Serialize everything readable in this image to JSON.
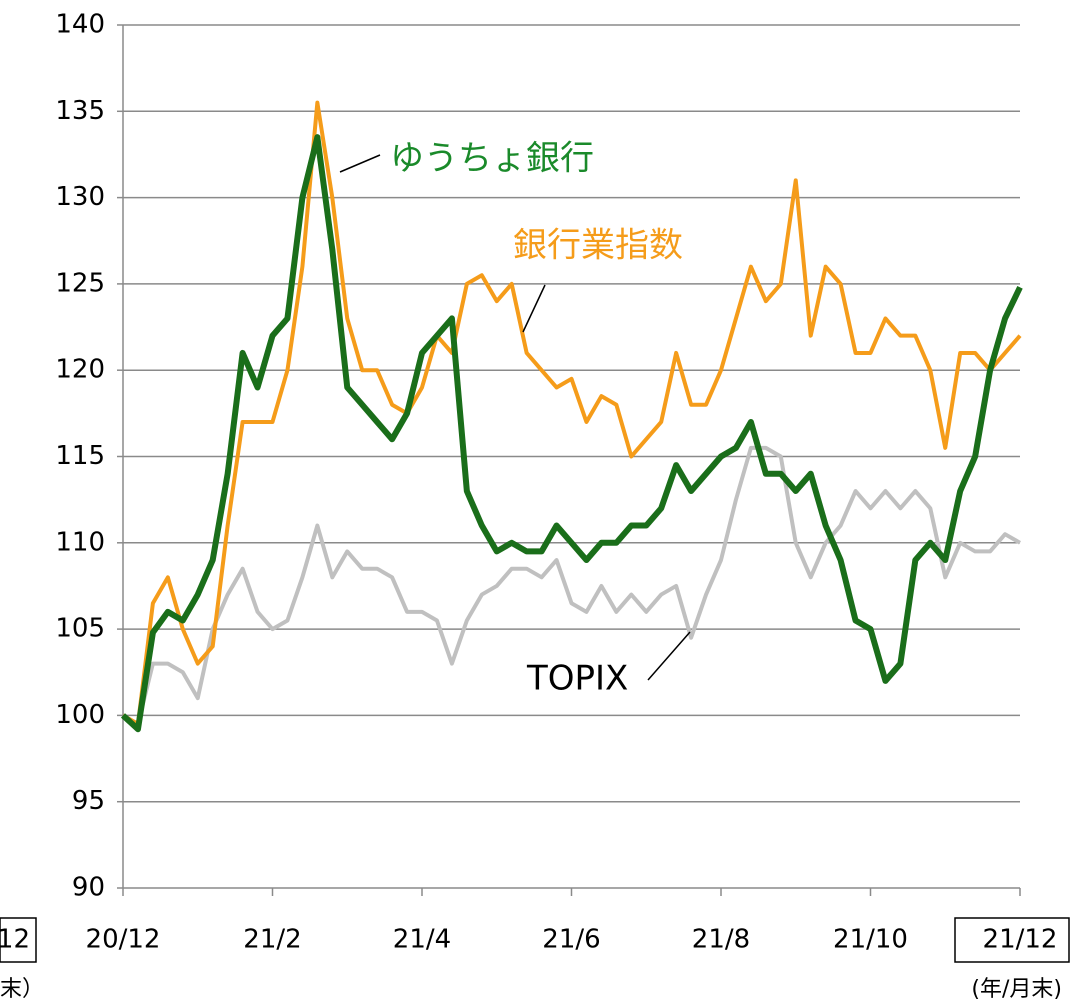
{
  "chart_data": {
    "type": "line",
    "x": [
      0,
      0.2,
      0.4,
      0.6,
      0.8,
      1,
      1.2,
      1.4,
      1.6,
      1.8,
      2,
      2.2,
      2.4,
      2.6,
      2.8,
      3,
      3.2,
      3.4,
      3.6,
      3.8,
      4,
      4.2,
      4.4,
      4.6,
      4.8,
      5,
      5.2,
      5.4,
      5.6,
      5.8,
      6,
      6.2,
      6.4,
      6.6,
      6.8,
      7,
      7.2,
      7.4,
      7.6,
      7.8,
      8,
      8.2,
      8.4,
      8.6,
      8.8,
      9,
      9.2,
      9.4,
      9.6,
      9.8,
      10,
      10.2,
      10.4,
      10.6,
      10.8,
      11,
      11.2,
      11.4,
      11.6,
      11.8,
      12
    ],
    "series": [
      {
        "name": "TOPIX",
        "color": "#c0c0c0",
        "values": [
          100,
          99.5,
          103,
          103,
          102.5,
          101,
          105,
          107,
          108.5,
          106,
          105,
          105.5,
          108,
          111,
          108,
          109.5,
          108.5,
          108.5,
          108,
          106,
          106,
          105.5,
          103,
          105.5,
          107,
          107.5,
          108.5,
          108.5,
          108,
          109,
          106.5,
          106,
          107.5,
          106,
          107,
          106,
          107,
          107.5,
          104.5,
          107,
          109,
          112.5,
          115.5,
          115.5,
          115,
          110,
          108,
          110,
          111,
          113,
          112,
          113,
          112,
          113,
          112,
          108,
          110,
          109.5,
          109.5,
          110.5,
          110
        ]
      },
      {
        "name": "銀行業指数",
        "color": "#f59c1a",
        "values": [
          100,
          99.5,
          106.5,
          108,
          105,
          103,
          104,
          111,
          117,
          117,
          117,
          120,
          126,
          135.5,
          130,
          123,
          120,
          120,
          118,
          117.5,
          119,
          122,
          121,
          125,
          125.5,
          124,
          125,
          121,
          120,
          119,
          119.5,
          117,
          118.5,
          118,
          115,
          116,
          117,
          121,
          118,
          118,
          120,
          123,
          126,
          124,
          125,
          131,
          122,
          126,
          125,
          121,
          121,
          123,
          122,
          122,
          120,
          115.5,
          121,
          121,
          120,
          121,
          122
        ]
      },
      {
        "name": "ゆうちょ銀行",
        "color": "#1a6e1a",
        "values": [
          100,
          99.2,
          104.8,
          106,
          105.5,
          107,
          109,
          114,
          121,
          119,
          122,
          123,
          130,
          133.5,
          127,
          119,
          118,
          117,
          116,
          117.5,
          121,
          122,
          123,
          113,
          111,
          109.5,
          110,
          109.5,
          109.5,
          111,
          110,
          109,
          110,
          110,
          111,
          111,
          112,
          114.5,
          113,
          114,
          115,
          115.5,
          117,
          114,
          114,
          113,
          114,
          111,
          109,
          105.5,
          105,
          102,
          103,
          109,
          110,
          109,
          113,
          115,
          120,
          123,
          124.8
        ]
      }
    ],
    "xlim": [
      0,
      12
    ],
    "xticks": [
      {
        "value": 0,
        "label": "20/12"
      },
      {
        "value": 2,
        "label": "21/2"
      },
      {
        "value": 4,
        "label": "21/4"
      },
      {
        "value": 6,
        "label": "21/6"
      },
      {
        "value": 8,
        "label": "21/8"
      },
      {
        "value": 10,
        "label": "21/10"
      },
      {
        "value": 12,
        "label": "21/12"
      }
    ],
    "ylim": [
      90,
      140
    ],
    "yticks": [
      90,
      95,
      100,
      105,
      110,
      115,
      120,
      125,
      130,
      135,
      140
    ],
    "grid": true,
    "xlabel": "(年/月末)",
    "cut_labels": [
      "12",
      "末）"
    ]
  }
}
